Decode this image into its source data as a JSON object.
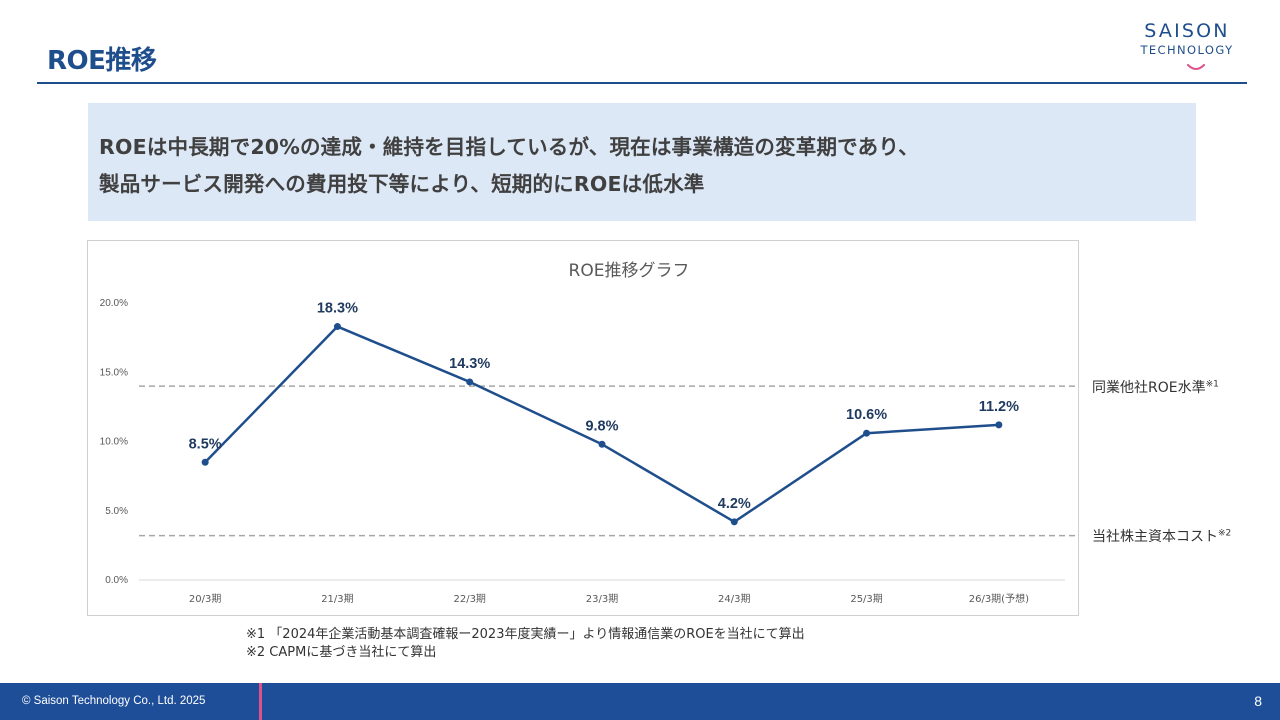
{
  "header": {
    "title": "ROE推移",
    "logo_line1": "SAISON",
    "logo_line2": "TECHNOLOGY"
  },
  "summary": {
    "line1": "ROEは中長期で20%の達成・維持を目指しているが、現在は事業構造の変革期であり、",
    "line2": "製品サービス開発への費用投下等により、短期的にROEは低水準"
  },
  "chart_data": {
    "type": "line",
    "title": "ROE推移グラフ",
    "categories": [
      "20/3期",
      "21/3期",
      "22/3期",
      "23/3期",
      "24/3期",
      "25/3期",
      "26/3期(予想)"
    ],
    "values": [
      8.5,
      18.3,
      14.3,
      9.8,
      4.2,
      10.6,
      11.2
    ],
    "value_labels": [
      "8.5%",
      "18.3%",
      "14.3%",
      "9.8%",
      "4.2%",
      "10.6%",
      "11.2%"
    ],
    "ylim": [
      0,
      20
    ],
    "yticks": [
      0,
      5,
      10,
      15,
      20
    ],
    "ytick_labels": [
      "0.0%",
      "5.0%",
      "10.0%",
      "15.0%",
      "20.0%"
    ],
    "reference_lines": [
      {
        "label": "同業他社ROE水準",
        "note": "※1",
        "value": 14.0
      },
      {
        "label": "当社株主資本コスト",
        "note": "※2",
        "value": 3.2
      }
    ],
    "line_color": "#1f4e8c",
    "grid": false
  },
  "notes": {
    "note1": "※1 「2024年企業活動基本調査確報ー2023年度実績ー」より情報通信業のROEを当社にて算出",
    "note2": "※2 CAPMに基づき当社にて算出"
  },
  "footer": {
    "copyright": "© Saison Technology Co., Ltd. 2025",
    "page": "8"
  }
}
